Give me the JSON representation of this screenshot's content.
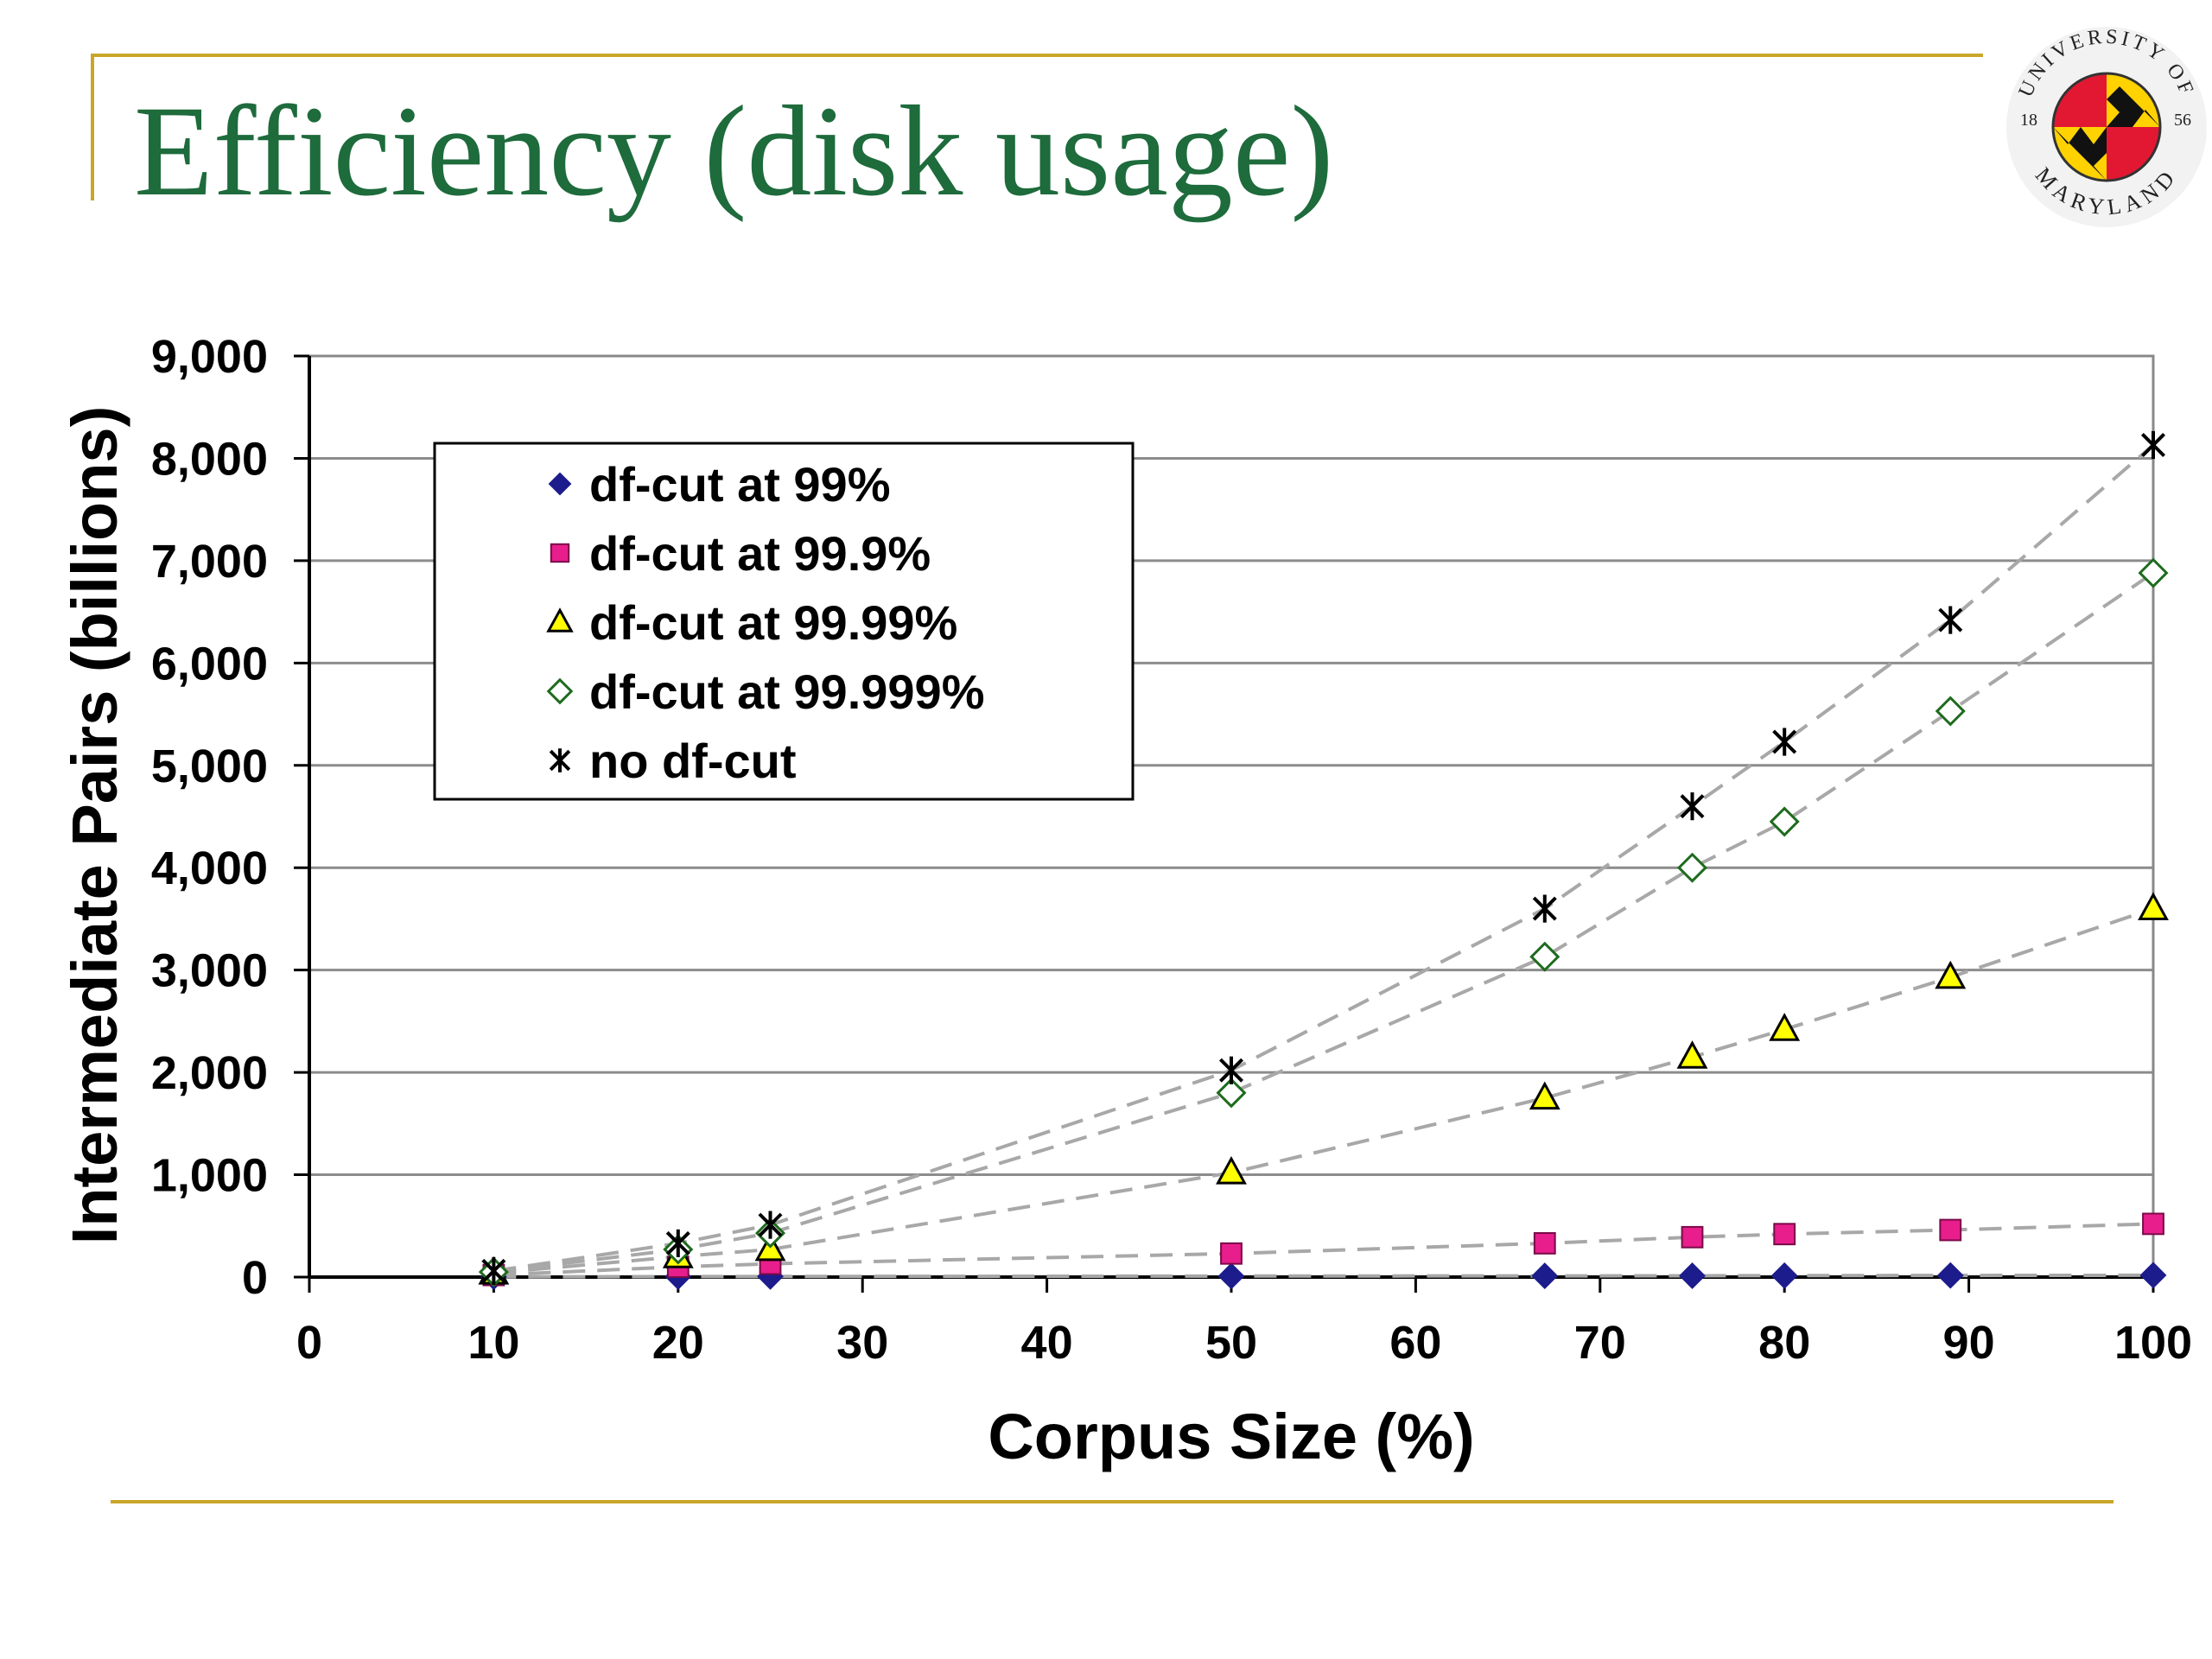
{
  "slide": {
    "title": "Efficiency (disk usage)",
    "colors": {
      "title": "#1e6b3c",
      "rule": "#c8a62a"
    },
    "logo": {
      "icon": "university-of-maryland-seal-icon",
      "text_top": "UNIVERSITY OF",
      "text_bottom": "MARYLAND",
      "year_left": "18",
      "year_right": "56"
    }
  },
  "chart_data": {
    "type": "scatter",
    "xlabel": "Corpus Size (%)",
    "ylabel": "Intermediate Pairs (billions)",
    "xlim": [
      0,
      100
    ],
    "ylim": [
      0,
      9000
    ],
    "xticks": [
      0,
      10,
      20,
      30,
      40,
      50,
      60,
      70,
      80,
      90,
      100
    ],
    "yticks": [
      0,
      1000,
      2000,
      3000,
      4000,
      5000,
      6000,
      7000,
      8000,
      9000
    ],
    "xtick_labels": [
      "0",
      "10",
      "20",
      "30",
      "40",
      "50",
      "60",
      "70",
      "80",
      "90",
      "100"
    ],
    "ytick_labels": [
      "0",
      "1,000",
      "2,000",
      "3,000",
      "4,000",
      "5,000",
      "6,000",
      "7,000",
      "8,000",
      "9,000"
    ],
    "grid": "horizontal",
    "legend_position": "top-left",
    "trendline": "dashed gray",
    "series": [
      {
        "name": "df-cut at 99%",
        "marker": "diamond",
        "color": "#1c1c8c",
        "x": [
          10,
          20,
          25,
          50,
          67,
          75,
          80,
          89,
          100
        ],
        "y": [
          2,
          5,
          6,
          10,
          12,
          13,
          14,
          16,
          18
        ]
      },
      {
        "name": "df-cut at 99.9%",
        "marker": "square",
        "color": "#e81e8c",
        "x": [
          10,
          20,
          25,
          50,
          67,
          75,
          80,
          89,
          100
        ],
        "y": [
          20,
          100,
          130,
          230,
          330,
          390,
          420,
          460,
          520
        ]
      },
      {
        "name": "df-cut at 99.99%",
        "marker": "triangle",
        "color": "#ffff00",
        "x": [
          10,
          20,
          25,
          50,
          67,
          75,
          80,
          89,
          100
        ],
        "y": [
          40,
          200,
          270,
          1020,
          1750,
          2150,
          2420,
          2930,
          3600
        ]
      },
      {
        "name": "df-cut at 99.999%",
        "marker": "diamond-open",
        "color": "#1e6b1e",
        "x": [
          10,
          20,
          25,
          50,
          67,
          75,
          80,
          89,
          100
        ],
        "y": [
          50,
          270,
          430,
          1800,
          3130,
          4000,
          4450,
          5530,
          6880
        ]
      },
      {
        "name": "no df-cut",
        "marker": "star",
        "color": "#000000",
        "x": [
          10,
          20,
          25,
          50,
          67,
          75,
          80,
          89,
          100
        ],
        "y": [
          60,
          330,
          510,
          2020,
          3600,
          4600,
          5230,
          6420,
          8130
        ]
      }
    ]
  }
}
